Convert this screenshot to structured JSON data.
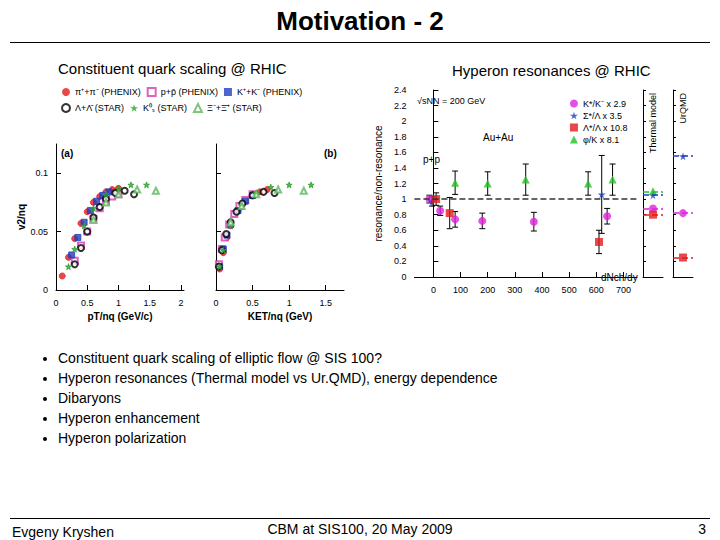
{
  "slide": {
    "title": "Motivation - 2",
    "bullets": [
      "Constituent quark scaling of elliptic flow @ SIS 100?",
      "Hyperon resonances (Thermal model vs Ur.QMD), energy dependence",
      "Dibaryons",
      "Hyperon enhancement",
      "Hyperon polarization"
    ],
    "footer": {
      "author": "Evgeny Kryshen",
      "event": "CBM at SIS100, 20 May 2009",
      "page": 3
    }
  },
  "chart_data": [
    {
      "type": "scatter",
      "title": "Constituent quark scaling @ RHIC",
      "ylabel": "v2/nq",
      "ylim": [
        0,
        0.125
      ],
      "yticks": [
        0,
        0.05,
        0.1
      ],
      "panels": [
        {
          "label": "(a)",
          "xlabel": "pT/nq (GeV/c)",
          "xlim": [
            0,
            2.05
          ],
          "xticks": [
            0,
            0.5,
            1,
            1.5,
            2
          ]
        },
        {
          "label": "(b)",
          "xlabel": "KET/nq (GeV)",
          "xlim": [
            0,
            1.75
          ],
          "xticks": [
            0,
            0.5,
            1,
            1.5
          ]
        }
      ],
      "series": [
        {
          "name": "π⁺+π⁻ (PHENIX)",
          "color": "#e41a1c",
          "marker": "circle",
          "x": [
            [
              0.1,
              0.2,
              0.3,
              0.4,
              0.5,
              0.6,
              0.7,
              0.8,
              0.9,
              1.0
            ],
            [
              0.05,
              0.1,
              0.15,
              0.2,
              0.3,
              0.4,
              0.5,
              0.6,
              0.7
            ]
          ],
          "values": [
            [
              0.012,
              0.028,
              0.044,
              0.057,
              0.067,
              0.075,
              0.08,
              0.084,
              0.086,
              0.087
            ],
            [
              0.018,
              0.032,
              0.045,
              0.055,
              0.068,
              0.076,
              0.081,
              0.084,
              0.086
            ]
          ]
        },
        {
          "name": "p+p̄ (PHENIX)",
          "color": "#d63bb0",
          "marker": "open_square",
          "x": [
            [
              0.3,
              0.4,
              0.5,
              0.6,
              0.7,
              0.8,
              0.9,
              1.0
            ],
            [
              0.04,
              0.08,
              0.12,
              0.18,
              0.25,
              0.32,
              0.4,
              0.5
            ]
          ],
          "values": [
            [
              0.025,
              0.038,
              0.05,
              0.061,
              0.07,
              0.076,
              0.08,
              0.082
            ],
            [
              0.022,
              0.035,
              0.045,
              0.056,
              0.065,
              0.072,
              0.077,
              0.082
            ]
          ]
        },
        {
          "name": "K⁺+K⁻ (PHENIX)",
          "color": "#1f3fbf",
          "marker": "square",
          "x": [
            [
              0.25,
              0.35,
              0.45,
              0.55,
              0.65,
              0.75,
              0.85
            ],
            [
              0.05,
              0.1,
              0.15,
              0.2,
              0.3,
              0.4,
              0.5
            ]
          ],
          "values": [
            [
              0.03,
              0.045,
              0.058,
              0.068,
              0.076,
              0.081,
              0.084
            ],
            [
              0.02,
              0.035,
              0.047,
              0.056,
              0.068,
              0.076,
              0.081
            ]
          ]
        },
        {
          "name": "Λ+Λ̄ (STAR)",
          "color": "#000000",
          "marker": "open_circle",
          "x": [
            [
              0.3,
              0.4,
              0.5,
              0.6,
              0.7,
              0.8,
              0.95,
              1.1,
              1.25
            ],
            [
              0.04,
              0.08,
              0.14,
              0.2,
              0.28,
              0.36,
              0.5,
              0.65,
              0.8
            ]
          ],
          "values": [
            [
              0.022,
              0.036,
              0.05,
              0.062,
              0.071,
              0.078,
              0.083,
              0.085,
              0.082
            ],
            [
              0.02,
              0.034,
              0.048,
              0.058,
              0.067,
              0.074,
              0.081,
              0.084,
              0.083
            ]
          ]
        },
        {
          "name": "K⁰ₛ (STAR)",
          "color": "#2ca02c",
          "marker": "star",
          "x": [
            [
              0.2,
              0.3,
              0.45,
              0.6,
              0.8,
              1.0,
              1.2,
              1.45
            ],
            [
              0.05,
              0.1,
              0.2,
              0.35,
              0.55,
              0.75,
              1.0,
              1.3
            ]
          ],
          "values": [
            [
              0.02,
              0.035,
              0.055,
              0.07,
              0.082,
              0.087,
              0.09,
              0.09
            ],
            [
              0.02,
              0.034,
              0.055,
              0.072,
              0.083,
              0.088,
              0.09,
              0.09
            ]
          ]
        },
        {
          "name": "Ξ⁻+Ξ̄⁺ (STAR)",
          "color": "#5cb85c",
          "marker": "open_triangle",
          "x": [
            [
              0.6,
              0.8,
              1.0,
              1.3,
              1.6
            ],
            [
              0.2,
              0.35,
              0.55,
              0.85,
              1.2
            ]
          ],
          "values": [
            [
              0.06,
              0.075,
              0.082,
              0.086,
              0.085
            ],
            [
              0.058,
              0.072,
              0.082,
              0.086,
              0.085
            ]
          ]
        }
      ]
    },
    {
      "type": "scatter",
      "title": "Hyperon resonances @ RHIC",
      "xlabel": "dNch/dy",
      "ylabel": "resonance/non-resonance",
      "xlim": [
        -70,
        750
      ],
      "xticks": [
        0,
        100,
        200,
        300,
        400,
        500,
        600,
        700
      ],
      "ylim": [
        0,
        2.4
      ],
      "yticks": [
        0,
        0.2,
        0.4,
        0.6,
        0.8,
        1,
        1.2,
        1.4,
        1.6,
        1.8,
        2,
        2.2,
        2.4
      ],
      "reference_line": 1,
      "annotations": [
        "√sNN = 200 GeV",
        "Au+Au",
        "p+p"
      ],
      "models": [
        "Thermal model",
        "UrQMD"
      ],
      "series": [
        {
          "name": "K*/K⁻ x 2.9",
          "color": "#e020e0",
          "marker": "circle",
          "x": [
            -15,
            25,
            80,
            180,
            370,
            640
          ],
          "values": [
            1.0,
            0.85,
            0.74,
            0.72,
            0.71,
            0.78
          ],
          "errors": [
            0.05,
            0.06,
            0.1,
            0.1,
            0.12,
            0.1
          ],
          "models": [
            0.88,
            0.82
          ]
        },
        {
          "name": "Σ*/Λ x 3.5",
          "color": "#1f3fbf",
          "marker": "star",
          "x": [
            -5,
            620
          ],
          "values": [
            0.97,
            1.06
          ],
          "errors": [
            0.06,
            0.5
          ],
          "models": [
            1.05,
            1.55
          ]
        },
        {
          "name": "Λ*/Λ x 10.8",
          "color": "#e41a1c",
          "marker": "square",
          "x": [
            10,
            60,
            610
          ],
          "values": [
            1.0,
            0.82,
            0.45
          ],
          "errors": [
            0.08,
            0.2,
            0.15
          ],
          "models": [
            0.8,
            0.25
          ]
        },
        {
          "name": "φ/K x 8.1",
          "color": "#22c022",
          "marker": "triangle",
          "x": [
            80,
            200,
            340,
            570,
            660
          ],
          "values": [
            1.21,
            1.2,
            1.25,
            1.2,
            1.25
          ],
          "errors": [
            0.15,
            0.15,
            0.2,
            0.15,
            0.2
          ],
          "models": [
            1.1,
            null
          ]
        }
      ]
    }
  ]
}
